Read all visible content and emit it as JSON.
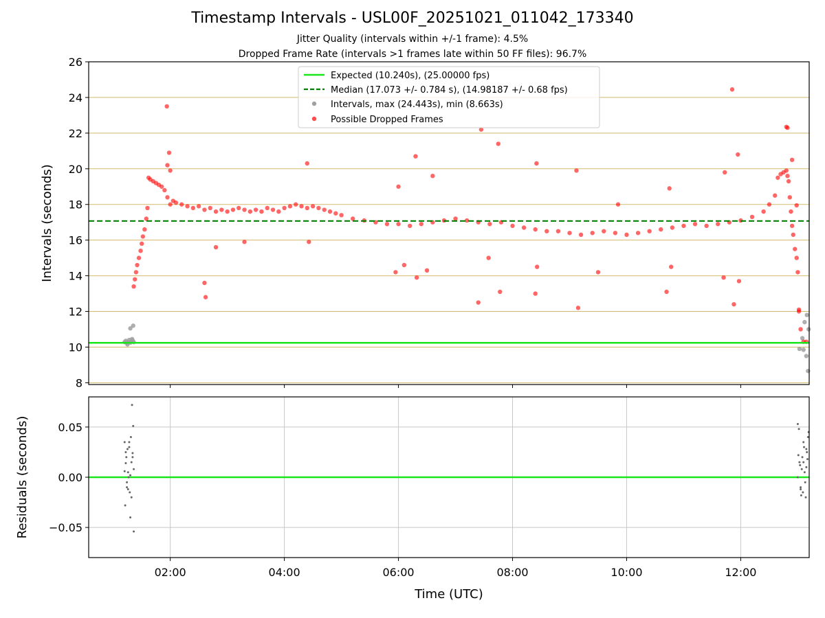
{
  "chart_data": [
    {
      "type": "scatter",
      "title": "Timestamp Intervals - USL00F_20251021_011042_173340",
      "subtitle_1": "Jitter Quality (intervals within +/-1 frame): 4.5%",
      "subtitle_2": "Dropped Frame Rate (intervals >1 frames late within 50 FF files): 96.7%",
      "xlabel": "Time (UTC)",
      "ylabel": "Intervals (seconds)",
      "xlim_hours": [
        0.57,
        13.2
      ],
      "ylim": [
        7.9,
        26
      ],
      "yticks": [
        8,
        10,
        12,
        14,
        16,
        18,
        20,
        22,
        24,
        26
      ],
      "yticklabels": [
        "8",
        "10",
        "12",
        "14",
        "16",
        "18",
        "20",
        "22",
        "24",
        "26"
      ],
      "xticks_hours": [
        2,
        4,
        6,
        8,
        10,
        12
      ],
      "xticklabels": [
        "02:00",
        "04:00",
        "06:00",
        "08:00",
        "10:00",
        "12:00"
      ],
      "grid": "horizontal gold lines",
      "legend_position": "top-center",
      "legend": [
        "Expected (10.240s), (25.00000 fps)",
        "Median (17.073 +/- 0.784 s), (14.98187 +/- 0.68 fps)",
        "Intervals, max (24.443s), min (8.663s)",
        "Possible Dropped Frames"
      ],
      "expected_interval": 10.24,
      "median_interval": 17.073,
      "colors": {
        "expected": "#19e619",
        "median": "#008000",
        "intervals": "#a0a0a0",
        "dropped": "#ff0000",
        "grid": "#d4b96a"
      },
      "series": [
        {
          "name": "Intervals",
          "x_hours": [
            1.2,
            1.22,
            1.24,
            1.26,
            1.28,
            1.3,
            1.32,
            1.34,
            1.36,
            1.25,
            1.33,
            1.35,
            1.3,
            13.03,
            13.1,
            13.15,
            13.18,
            13.08,
            13.12,
            13.16,
            13.19
          ],
          "y": [
            10.28,
            10.35,
            10.22,
            10.3,
            10.4,
            10.25,
            10.32,
            10.38,
            10.28,
            10.15,
            10.45,
            11.2,
            11.05,
            9.9,
            9.85,
            9.5,
            8.66,
            10.5,
            11.4,
            11.8,
            11.0
          ]
        },
        {
          "name": "Possible Dropped Frames",
          "x_hours": [
            1.36,
            1.38,
            1.4,
            1.42,
            1.45,
            1.48,
            1.5,
            1.52,
            1.55,
            1.58,
            1.6,
            1.62,
            1.65,
            1.7,
            1.75,
            1.8,
            1.85,
            1.9,
            1.95,
            2.0,
            2.05,
            2.1,
            2.2,
            2.3,
            2.4,
            2.5,
            2.6,
            2.7,
            2.8,
            2.9,
            3.0,
            3.1,
            3.2,
            3.3,
            3.4,
            3.5,
            3.6,
            3.7,
            3.8,
            3.9,
            4.0,
            4.1,
            4.2,
            4.3,
            4.4,
            4.5,
            4.6,
            4.7,
            4.8,
            4.9,
            5.0,
            5.2,
            5.4,
            5.6,
            5.8,
            6.0,
            6.2,
            6.4,
            6.6,
            6.8,
            7.0,
            7.2,
            7.4,
            7.6,
            7.8,
            8.0,
            8.2,
            8.4,
            8.6,
            8.8,
            9.0,
            9.2,
            9.4,
            9.6,
            9.8,
            10.0,
            10.2,
            10.4,
            10.6,
            10.8,
            11.0,
            11.2,
            11.4,
            11.6,
            11.8,
            12.0,
            12.2,
            12.4,
            12.5,
            12.6,
            12.65,
            12.7,
            12.75,
            12.8,
            12.82,
            12.84,
            12.86,
            12.88,
            12.9,
            12.92,
            12.95,
            12.98,
            13.0,
            13.02,
            13.05,
            13.1,
            13.15,
            1.94,
            1.95,
            1.98,
            2.0,
            2.6,
            2.62,
            2.8,
            3.3,
            4.4,
            4.43,
            5.95,
            6.0,
            6.1,
            6.3,
            6.32,
            6.5,
            6.6,
            7.4,
            7.45,
            7.58,
            7.75,
            7.78,
            8.4,
            8.42,
            8.43,
            9.12,
            9.15,
            9.5,
            9.85,
            10.7,
            10.75,
            10.78,
            11.7,
            11.72,
            11.85,
            11.88,
            11.95,
            11.97,
            12.8,
            12.82,
            12.9,
            12.98,
            13.02
          ],
          "y": [
            13.4,
            13.8,
            14.2,
            14.6,
            15.0,
            15.4,
            15.8,
            16.2,
            16.6,
            17.2,
            17.8,
            19.5,
            19.4,
            19.3,
            19.2,
            19.1,
            19.0,
            18.8,
            18.4,
            18.0,
            18.2,
            18.1,
            18.0,
            17.9,
            17.8,
            17.9,
            17.7,
            17.8,
            17.6,
            17.7,
            17.6,
            17.7,
            17.8,
            17.7,
            17.6,
            17.7,
            17.6,
            17.8,
            17.7,
            17.6,
            17.8,
            17.9,
            18.0,
            17.9,
            17.8,
            17.9,
            17.8,
            17.7,
            17.6,
            17.5,
            17.4,
            17.2,
            17.1,
            17.0,
            16.9,
            16.9,
            16.8,
            16.9,
            17.0,
            17.1,
            17.2,
            17.1,
            17.0,
            16.9,
            17.0,
            16.8,
            16.7,
            16.6,
            16.5,
            16.5,
            16.4,
            16.3,
            16.4,
            16.5,
            16.4,
            16.3,
            16.4,
            16.5,
            16.6,
            16.7,
            16.8,
            16.9,
            16.8,
            16.9,
            17.0,
            17.1,
            17.3,
            17.6,
            18.0,
            18.5,
            19.5,
            19.7,
            19.8,
            19.9,
            19.6,
            19.3,
            18.4,
            17.6,
            16.8,
            16.3,
            15.5,
            15.0,
            14.2,
            12.0,
            11.0,
            10.3,
            10.3,
            23.5,
            20.2,
            20.9,
            19.9,
            13.6,
            12.8,
            15.6,
            15.9,
            20.3,
            15.9,
            14.2,
            19.0,
            14.6,
            20.7,
            13.9,
            14.3,
            19.6,
            12.5,
            22.2,
            15.0,
            21.4,
            13.1,
            13.0,
            20.3,
            14.5,
            19.9,
            12.2,
            14.2,
            18.0,
            13.1,
            18.9,
            14.5,
            13.9,
            19.8,
            24.45,
            12.4,
            20.8,
            13.7,
            22.35,
            22.3,
            20.5,
            17.95,
            12.1
          ]
        }
      ]
    },
    {
      "type": "scatter",
      "xlabel": "Time (UTC)",
      "ylabel": "Residuals (seconds)",
      "ylim": [
        -0.08,
        0.08
      ],
      "yticks": [
        -0.05,
        0,
        0.05
      ],
      "yticklabels": [
        "−0.05",
        "0.00",
        "0.05"
      ],
      "grid": "both axes, light gray",
      "series": [
        {
          "name": "Residuals",
          "x_hours": [
            1.2,
            1.22,
            1.24,
            1.26,
            1.28,
            1.3,
            1.32,
            1.34,
            1.36,
            1.21,
            1.23,
            1.25,
            1.27,
            1.29,
            1.31,
            1.33,
            1.35,
            1.2,
            1.24,
            1.28,
            1.32,
            1.36,
            1.22,
            1.26,
            1.3,
            1.34,
            13.0,
            13.02,
            13.04,
            13.06,
            13.08,
            13.1,
            13.12,
            13.14,
            13.16,
            13.18,
            13.01,
            13.03,
            13.05,
            13.07,
            13.09,
            13.11,
            13.13,
            13.15,
            13.17,
            13.19,
            13.0,
            13.05,
            13.1,
            13.15
          ],
          "y": [
            0.035,
            0.025,
            -0.01,
            0.005,
            0.03,
            -0.04,
            0.015,
            0.02,
            -0.054,
            -0.028,
            0.02,
            0.028,
            0.0,
            -0.015,
            0.04,
            0.072,
            0.051,
            0.006,
            -0.005,
            0.035,
            -0.02,
            0.008,
            0.014,
            -0.012,
            0.002,
            0.024,
            0.053,
            0.048,
            0.012,
            -0.018,
            0.02,
            0.035,
            0.005,
            -0.02,
            0.025,
            0.04,
            0.022,
            0.015,
            -0.01,
            0.008,
            -0.015,
            0.03,
            -0.005,
            0.01,
            0.018,
            0.045,
            0.0,
            -0.012,
            0.015,
            0.028
          ]
        }
      ]
    }
  ]
}
